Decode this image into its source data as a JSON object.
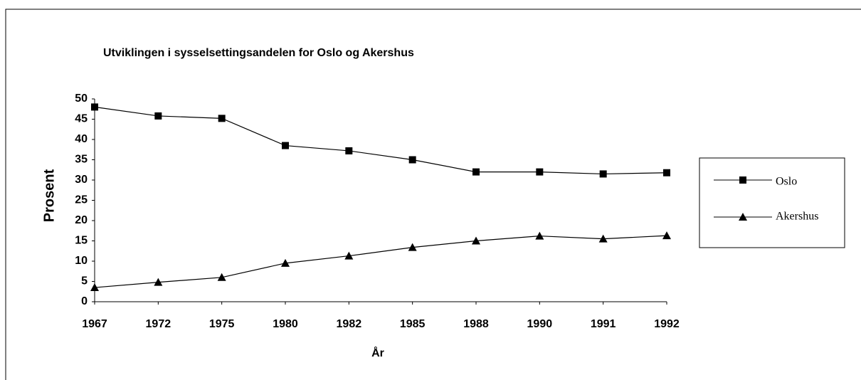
{
  "chart_data": {
    "type": "line",
    "title": "Utviklingen i sysselsettingsandelen for Oslo og Akershus",
    "x_label": "År",
    "y_label": "Prosent",
    "categories": [
      "1967",
      "1972",
      "1975",
      "1980",
      "1982",
      "1985",
      "1988",
      "1990",
      "1991",
      "1992"
    ],
    "series": [
      {
        "name": "Oslo",
        "color": "#000000",
        "marker": "square",
        "values": [
          48,
          45.8,
          45.2,
          38.5,
          37.2,
          35,
          32,
          32,
          31.5,
          31.8
        ]
      },
      {
        "name": "Akershus",
        "color": "#000000",
        "marker": "triangle",
        "values": [
          3.5,
          4.8,
          6,
          9.5,
          11.3,
          13.4,
          15,
          16.2,
          15.5,
          16.3
        ]
      }
    ],
    "ylim": [
      0,
      50
    ],
    "yticks": [
      0,
      5,
      10,
      15,
      20,
      25,
      30,
      35,
      40,
      45,
      50
    ],
    "grid": false,
    "legend": "right"
  }
}
